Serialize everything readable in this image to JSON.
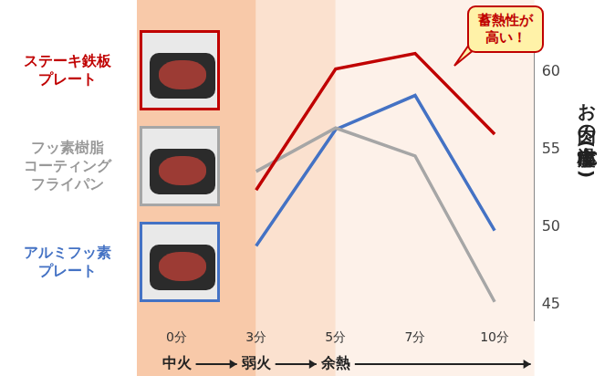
{
  "chart_data": {
    "type": "line",
    "categories": [
      "0分",
      "3分",
      "5分",
      "7分",
      "10分"
    ],
    "series": [
      {
        "name": "ステーキ鉄板プレート",
        "color": "#c00000",
        "values": [
          null,
          52.4,
          60.2,
          61.2,
          56.0
        ]
      },
      {
        "name": "フッ素樹脂コーティングフライパン",
        "color": "#a6a6a6",
        "values": [
          null,
          53.6,
          56.4,
          54.6,
          45.2
        ]
      },
      {
        "name": "アルミフッ素プレート",
        "color": "#4472c4",
        "values": [
          null,
          48.8,
          56.3,
          58.5,
          49.8
        ]
      }
    ],
    "y_label": "お肉の中心温度 (℃)",
    "annotation": "蓄熱性が高い！",
    "phases": [
      "中火",
      "弱火",
      "余熱"
    ],
    "ylim": [
      44,
      63
    ],
    "yticks": [
      45,
      50,
      55,
      60
    ],
    "grid": false,
    "legend": "left"
  }
}
